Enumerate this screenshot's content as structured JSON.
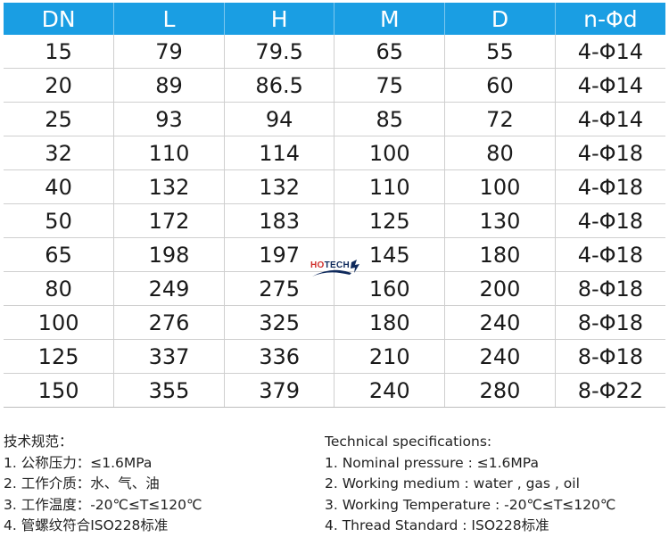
{
  "table": {
    "headers": [
      "DN",
      "L",
      "H",
      "M",
      "D",
      "n-Φd"
    ],
    "rows": [
      [
        "15",
        "79",
        "79.5",
        "65",
        "55",
        "4-Φ14"
      ],
      [
        "20",
        "89",
        "86.5",
        "75",
        "60",
        "4-Φ14"
      ],
      [
        "25",
        "93",
        "94",
        "85",
        "72",
        "4-Φ14"
      ],
      [
        "32",
        "110",
        "114",
        "100",
        "80",
        "4-Φ18"
      ],
      [
        "40",
        "132",
        "132",
        "110",
        "100",
        "4-Φ18"
      ],
      [
        "50",
        "172",
        "183",
        "125",
        "130",
        "4-Φ18"
      ],
      [
        "65",
        "198",
        "197",
        "145",
        "180",
        "4-Φ18"
      ],
      [
        "80",
        "249",
        "275",
        "160",
        "200",
        "8-Φ18"
      ],
      [
        "100",
        "276",
        "325",
        "180",
        "240",
        "8-Φ18"
      ],
      [
        "125",
        "337",
        "336",
        "210",
        "240",
        "8-Φ18"
      ],
      [
        "150",
        "355",
        "379",
        "240",
        "280",
        "8-Φ22"
      ]
    ]
  },
  "watermark": {
    "part1": "HO",
    "part2": "TECH"
  },
  "notes_cn": {
    "title": "技术规范：",
    "items": [
      "1. 公称压力：≤1.6MPa",
      "2. 工作介质：水、气、油",
      "3. 工作温度：-20℃≤T≤120℃",
      "4. 管螺纹符合ISO228标准"
    ]
  },
  "notes_en": {
    "title": "Technical specifications:",
    "items": [
      "1. Nominal pressure : ≤1.6MPa",
      "2. Working medium : water , gas , oil",
      "3. Working Temperature : -20℃≤T≤120℃",
      "4. Thread Standard : ISO228标准"
    ]
  },
  "colors": {
    "header_bg": "#1a9ee3",
    "header_text": "#ffffff",
    "grid": "#cfcfcf"
  }
}
